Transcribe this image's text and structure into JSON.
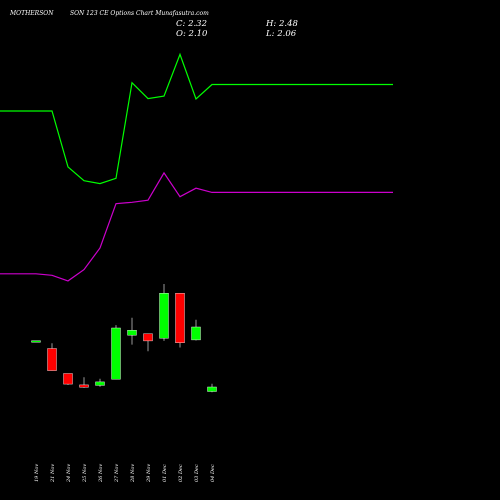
{
  "header": {
    "symbol": "MOTHERSON",
    "rest": "SON  123 CE Options  Chart Munafasutra.com",
    "close_label": "C: 2.32",
    "high_label": "H: 2.48",
    "open_label": "O: 2.10",
    "low_label": "L: 2.06"
  },
  "colors": {
    "background": "#000000",
    "up": "#00ff00",
    "down": "#ff0000",
    "line_upper": "#00ff00",
    "line_lower": "#cc00cc",
    "text": "#ffffff"
  },
  "chart_data": {
    "type": "candlestick",
    "categories": [
      "19 Nov",
      "21 Nov",
      "24 Nov",
      "25 Nov",
      "26 Nov",
      "27 Nov",
      "28 Nov",
      "29 Nov",
      "01 Dec",
      "02 Dec",
      "03 Dec",
      "04 Dec"
    ],
    "candles": [
      {
        "open": 4.58,
        "close": 4.58,
        "high": 4.58,
        "low": 4.58
      },
      {
        "open": 4.2,
        "close": 3.12,
        "high": 4.46,
        "low": 3.12
      },
      {
        "open": 2.98,
        "close": 2.46,
        "high": 2.98,
        "low": 2.42
      },
      {
        "open": 2.42,
        "close": 2.31,
        "high": 2.8,
        "low": 2.28
      },
      {
        "open": 2.4,
        "close": 2.57,
        "high": 2.72,
        "low": 2.33
      },
      {
        "open": 2.7,
        "close": 5.2,
        "high": 5.34,
        "low": 2.7
      },
      {
        "open": 4.85,
        "close": 5.09,
        "high": 5.7,
        "low": 4.39
      },
      {
        "open": 4.92,
        "close": 4.57,
        "high": 4.92,
        "low": 4.06
      },
      {
        "open": 4.7,
        "close": 6.9,
        "high": 7.35,
        "low": 4.57
      },
      {
        "open": 6.9,
        "close": 4.48,
        "high": 6.9,
        "low": 4.25
      },
      {
        "open": 4.62,
        "close": 5.25,
        "high": 5.6,
        "low": 4.59
      },
      {
        "open": 2.1,
        "close": 2.32,
        "high": 2.48,
        "low": 2.06
      }
    ],
    "series": [
      {
        "values": [
          12.8,
          12.8,
          11.22,
          10.83,
          10.75,
          10.9,
          13.6,
          13.15,
          13.22,
          14.4,
          13.14,
          13.55
        ]
      },
      {
        "values": [
          8.2,
          8.16,
          8.0,
          8.32,
          8.93,
          10.18,
          10.22,
          10.28,
          11.05,
          10.38,
          10.62,
          10.5
        ]
      }
    ]
  }
}
